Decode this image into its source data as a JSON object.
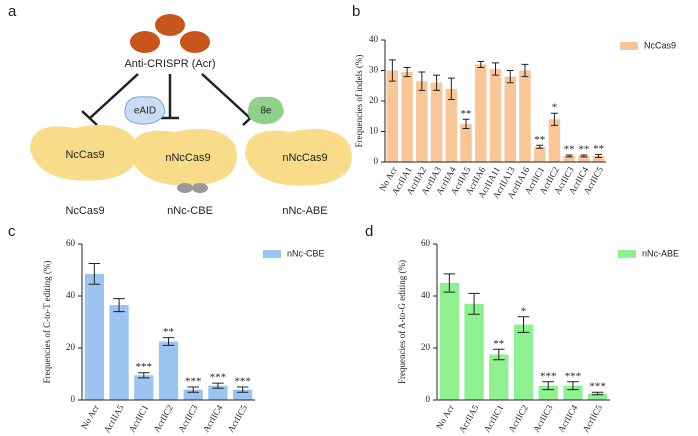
{
  "panel_labels": [
    "a",
    "b",
    "c",
    "d"
  ],
  "diagram": {
    "inhibitor": "Anti-CRISPR (Acr)",
    "proteins": [
      {
        "label": "NcCas9",
        "name": "NcCas9"
      },
      {
        "label": "nNcCas9",
        "domain": "eAID",
        "name": "nNc-CBE"
      },
      {
        "label": "nNcCas9",
        "domain": "8e",
        "name": "nNc-ABE"
      }
    ]
  },
  "chart_data": [
    {
      "type": "bar",
      "ylabel": "Frequencies of indels (%)",
      "categories": [
        "No Acr",
        "AcrIIA1",
        "AcrIIA2",
        "AcrIIA3",
        "AcrIIA4",
        "AcrIIA5",
        "AcrIIA6",
        "AcrIIA11",
        "AcrIIA13",
        "AcrIIA16",
        "AcrIIC1",
        "AcrIIC2",
        "AcrIIC3",
        "AcrIIC4",
        "AcrIIC5"
      ],
      "series": [
        {
          "name": "NcCas9",
          "color": "#f9c697",
          "values": [
            30,
            29.5,
            26.5,
            26,
            24,
            12.5,
            32,
            30.5,
            28,
            30,
            5,
            14,
            2,
            2,
            2
          ],
          "errors": [
            3.5,
            1.5,
            3,
            2.5,
            3.5,
            1.5,
            1,
            2,
            2,
            2,
            0.5,
            2,
            0.3,
            0.3,
            0.5
          ],
          "significance": [
            null,
            null,
            null,
            null,
            null,
            "**",
            null,
            null,
            null,
            null,
            "**",
            "*",
            "**",
            "**",
            "**"
          ]
        }
      ],
      "ylim": [
        0,
        40
      ],
      "yticks": [
        0,
        10,
        20,
        30,
        40
      ]
    },
    {
      "type": "bar",
      "ylabel": "Frequencies of C-to-T editing (%)",
      "categories": [
        "No Acr",
        "AcrIIA5",
        "AcrIIC1",
        "AcrIIC2",
        "AcrIIC3",
        "AcrIIC4",
        "AcrIIC5"
      ],
      "series": [
        {
          "name": "nNc-CBE",
          "color": "#9dc3f0",
          "values": [
            48.5,
            36.5,
            9.5,
            22.5,
            4,
            5.5,
            4
          ],
          "errors": [
            4,
            2.5,
            1,
            1.5,
            1,
            1,
            1
          ],
          "significance": [
            null,
            null,
            "***",
            "**",
            "***",
            "***",
            "***"
          ]
        }
      ],
      "ylim": [
        0,
        60
      ],
      "yticks": [
        0,
        20,
        40,
        60
      ]
    },
    {
      "type": "bar",
      "ylabel": "Frequencies of A-to-G editing (%)",
      "categories": [
        "No Acr",
        "AcrIIA5",
        "AcrIIC1",
        "AcrIIC2",
        "AcrIIC3",
        "AcrIIC4",
        "AcrIIC5"
      ],
      "series": [
        {
          "name": "nNc-ABE",
          "color": "#8ef08e",
          "values": [
            45,
            37,
            17.5,
            29,
            5.5,
            5.5,
            2.5
          ],
          "errors": [
            3.5,
            4,
            2,
            3,
            1.5,
            1.5,
            0.5
          ],
          "significance": [
            null,
            null,
            "**",
            "*",
            "***",
            "***",
            "***"
          ]
        }
      ],
      "ylim": [
        0,
        60
      ],
      "yticks": [
        0,
        20,
        40,
        60
      ]
    }
  ]
}
